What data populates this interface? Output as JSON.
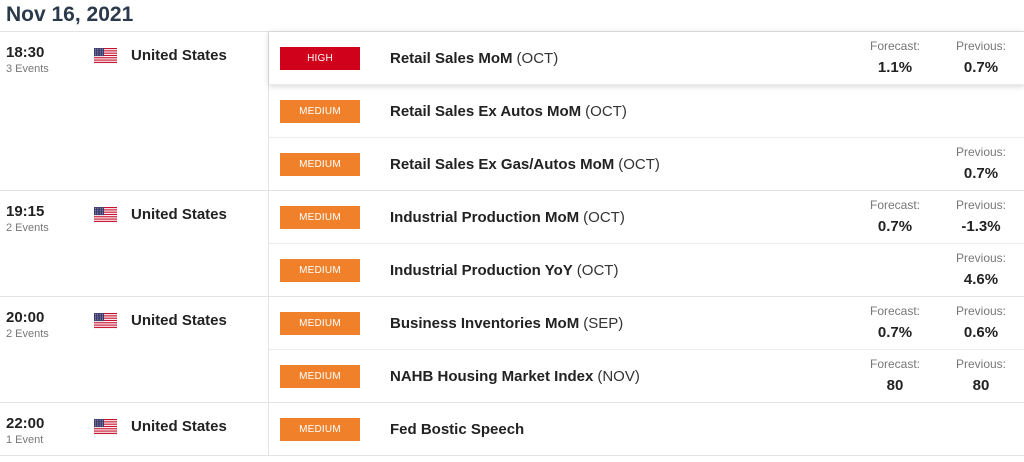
{
  "date": "Nov 16, 2021",
  "groups": [
    {
      "time": "18:30",
      "events_count": "3 Events",
      "country": "United States",
      "events": [
        {
          "impact": "HIGH",
          "name": "Retail Sales MoM",
          "period": "(OCT)",
          "forecast_label": "Forecast:",
          "forecast": "1.1%",
          "previous_label": "Previous:",
          "previous": "0.7%"
        },
        {
          "impact": "MEDIUM",
          "name": "Retail Sales Ex Autos MoM",
          "period": "(OCT)"
        },
        {
          "impact": "MEDIUM",
          "name": "Retail Sales Ex Gas/Autos MoM",
          "period": "(OCT)",
          "previous_label": "Previous:",
          "previous": "0.7%"
        }
      ]
    },
    {
      "time": "19:15",
      "events_count": "2 Events",
      "country": "United States",
      "events": [
        {
          "impact": "MEDIUM",
          "name": "Industrial Production MoM",
          "period": "(OCT)",
          "forecast_label": "Forecast:",
          "forecast": "0.7%",
          "previous_label": "Previous:",
          "previous": "-1.3%"
        },
        {
          "impact": "MEDIUM",
          "name": "Industrial Production YoY",
          "period": "(OCT)",
          "previous_label": "Previous:",
          "previous": "4.6%"
        }
      ]
    },
    {
      "time": "20:00",
      "events_count": "2 Events",
      "country": "United States",
      "events": [
        {
          "impact": "MEDIUM",
          "name": "Business Inventories MoM",
          "period": "(SEP)",
          "forecast_label": "Forecast:",
          "forecast": "0.7%",
          "previous_label": "Previous:",
          "previous": "0.6%"
        },
        {
          "impact": "MEDIUM",
          "name": "NAHB Housing Market Index",
          "period": "(NOV)",
          "forecast_label": "Forecast:",
          "forecast": "80",
          "previous_label": "Previous:",
          "previous": "80"
        }
      ]
    },
    {
      "time": "22:00",
      "events_count": "1 Event",
      "country": "United States",
      "events": [
        {
          "impact": "MEDIUM",
          "name": "Fed Bostic Speech",
          "period": ""
        }
      ]
    }
  ],
  "colors": {
    "high": "#d0021b",
    "medium": "#f0802a"
  },
  "icons": {
    "flag": "us-flag-icon"
  }
}
